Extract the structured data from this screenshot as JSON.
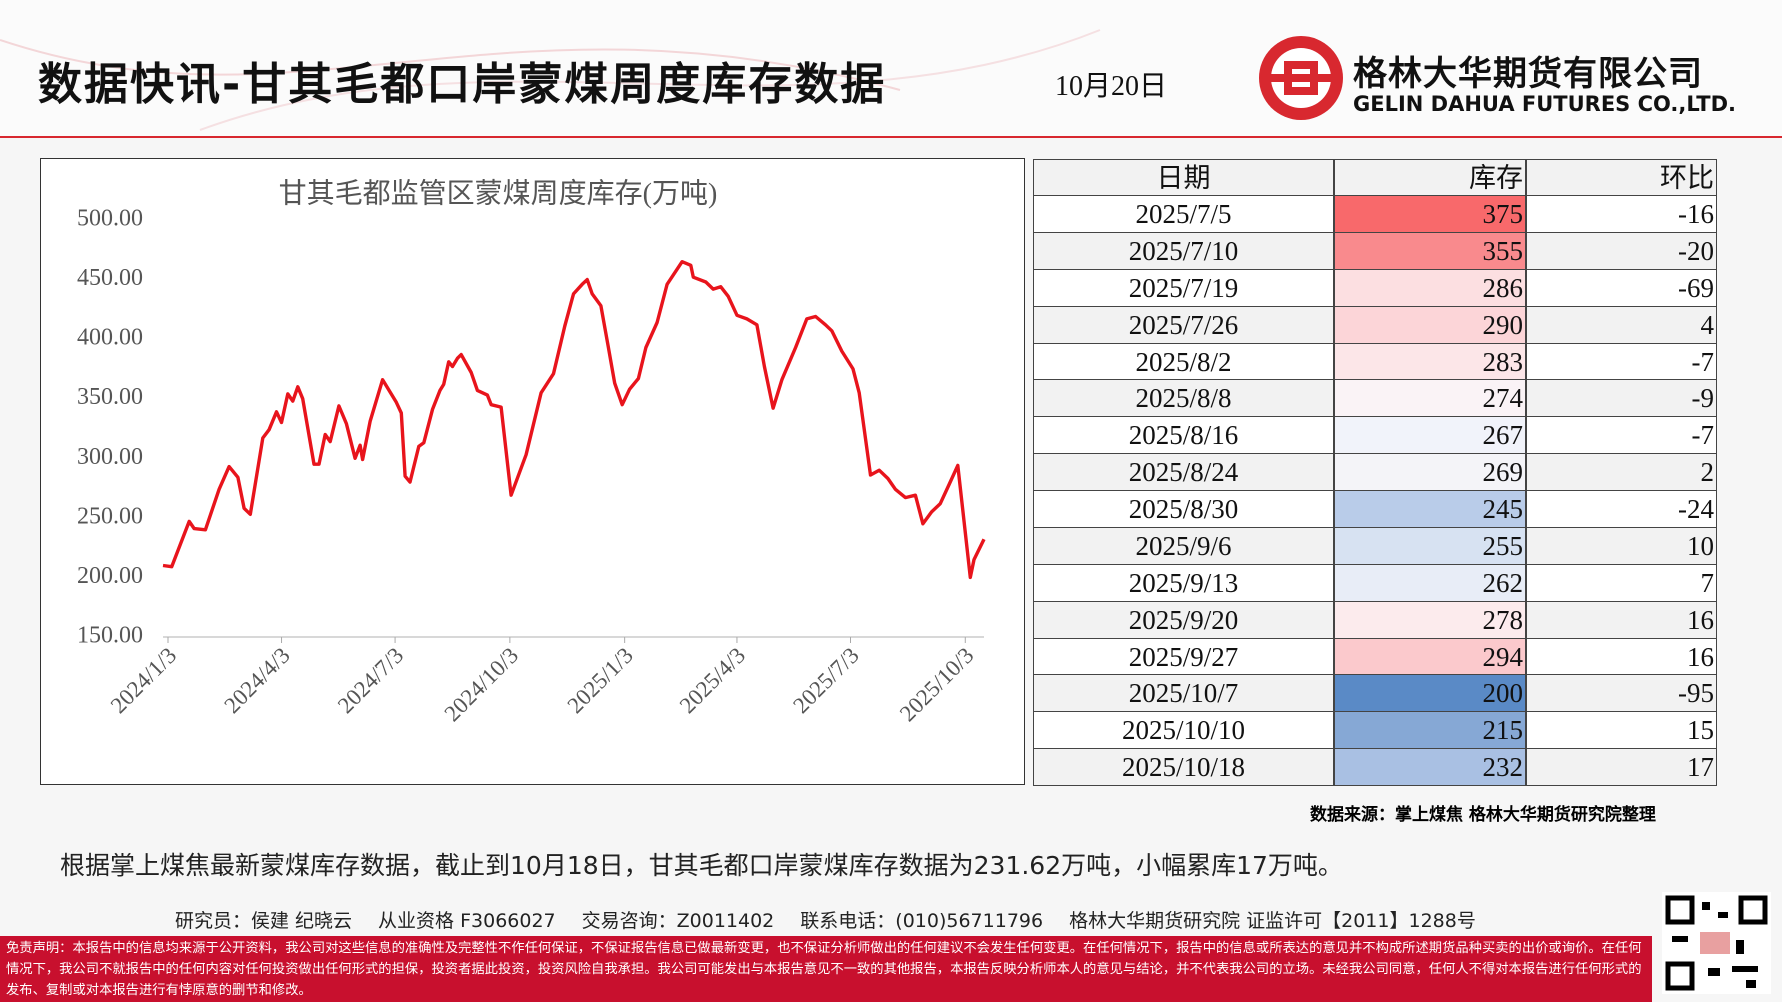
{
  "header": {
    "title": "数据快讯-甘其毛都口岸蒙煤周度库存数据",
    "date": "10月20日",
    "company_cn": "格林大华期货有限公司",
    "company_en": "GELIN DAHUA FUTURES CO.,LTD."
  },
  "chart_data": {
    "type": "line",
    "title": "甘其毛都监管区蒙煤周度库存(万吨)",
    "color": "#e8141c",
    "x": [
      "2023/12/30",
      "2024/1/6",
      "2024/1/20",
      "2024/1/24",
      "2024/2/2",
      "2024/2/13",
      "2024/2/21",
      "2024/2/28",
      "2024/3/4",
      "2024/3/9",
      "2024/3/19",
      "2024/3/24",
      "2024/3/30",
      "2024/4/3",
      "2024/4/8",
      "2024/4/12",
      "2024/4/16",
      "2024/4/20",
      "2024/4/29",
      "2024/5/3",
      "2024/5/8",
      "2024/5/12",
      "2024/5/19",
      "2024/5/25",
      "2024/6/1",
      "2024/6/5",
      "2024/6/7",
      "2024/6/13",
      "2024/6/23",
      "2024/7/4",
      "2024/7/8",
      "2024/7/11",
      "2024/7/15",
      "2024/7/22",
      "2024/7/26",
      "2024/8/2",
      "2024/8/8",
      "2024/8/11",
      "2024/8/15",
      "2024/8/18",
      "2024/8/22",
      "2024/8/25",
      "2024/9/2",
      "2024/9/7",
      "2024/9/15",
      "2024/9/18",
      "2024/9/26",
      "2024/10/4",
      "2024/10/16",
      "2024/10/28",
      "2024/11/7",
      "2024/11/16",
      "2024/11/23",
      "2024/11/30",
      "2024/12/4",
      "2024/12/8",
      "2024/12/15",
      "2024/12/21",
      "2024/12/26",
      "2025/1/1",
      "2025/1/7",
      "2025/1/14",
      "2025/1/20",
      "2025/1/29",
      "2025/2/6",
      "2025/2/18",
      "2025/2/25",
      "2025/2/27",
      "2025/3/9",
      "2025/3/15",
      "2025/3/21",
      "2025/3/27",
      "2025/4/3",
      "2025/4/11",
      "2025/4/19",
      "2025/4/25",
      "2025/5/2",
      "2025/5/9",
      "2025/5/20",
      "2025/5/29",
      "2025/6/5",
      "2025/6/13",
      "2025/6/18",
      "2025/6/26",
      "2025/7/5",
      "2025/7/10",
      "2025/7/19",
      "2025/7/26",
      "2025/8/2",
      "2025/8/8",
      "2025/8/16",
      "2025/8/24",
      "2025/8/30",
      "2025/9/6",
      "2025/9/13",
      "2025/9/20",
      "2025/9/27",
      "2025/10/7",
      "2025/10/10",
      "2025/10/18"
    ],
    "values": [
      210,
      209,
      247,
      241,
      240,
      274,
      293,
      284,
      258,
      253,
      317,
      324,
      339,
      330,
      354,
      348,
      360,
      350,
      295,
      295,
      320,
      314,
      344,
      329,
      300,
      311,
      299,
      331,
      366,
      347,
      338,
      285,
      280,
      310,
      313,
      341,
      357,
      362,
      381,
      377,
      384,
      387,
      372,
      357,
      353,
      345,
      343,
      269,
      303,
      355,
      371,
      411,
      438,
      446,
      450,
      438,
      428,
      393,
      363,
      345,
      358,
      367,
      393,
      414,
      446,
      465,
      462,
      452,
      448,
      442,
      444,
      436,
      420,
      417,
      412,
      377,
      342,
      366,
      393,
      417,
      419,
      412,
      407,
      390,
      375,
      355,
      286,
      290,
      283,
      274,
      267,
      269,
      245,
      255,
      262,
      278,
      294,
      200,
      215,
      232
    ],
    "xlim": [
      "2023/12/30",
      "2025/10/18"
    ],
    "xticks": [
      "2024/1/3",
      "2024/4/3",
      "2024/7/3",
      "2024/10/3",
      "2025/1/3",
      "2025/4/3",
      "2025/7/3",
      "2025/10/3"
    ],
    "ylim": [
      150,
      500
    ],
    "yticks": [
      {
        "value": 150,
        "label": "150.00"
      },
      {
        "value": 200,
        "label": "200.00"
      },
      {
        "value": 250,
        "label": "250.00"
      },
      {
        "value": 300,
        "label": "300.00"
      },
      {
        "value": 350,
        "label": "350.00"
      },
      {
        "value": 400,
        "label": "400.00"
      },
      {
        "value": 450,
        "label": "450.00"
      },
      {
        "value": 500,
        "label": "500.00"
      }
    ]
  },
  "table": {
    "columns": [
      "日期",
      "库存",
      "环比"
    ],
    "rows": [
      [
        "2025/7/5",
        375,
        -16
      ],
      [
        "2025/7/10",
        355,
        -20
      ],
      [
        "2025/7/19",
        286,
        -69
      ],
      [
        "2025/7/26",
        290,
        4
      ],
      [
        "2025/8/2",
        283,
        -7
      ],
      [
        "2025/8/8",
        274,
        -9
      ],
      [
        "2025/8/16",
        267,
        -7
      ],
      [
        "2025/8/24",
        269,
        2
      ],
      [
        "2025/8/30",
        245,
        -24
      ],
      [
        "2025/9/6",
        255,
        10
      ],
      [
        "2025/9/13",
        262,
        7
      ],
      [
        "2025/9/20",
        278,
        16
      ],
      [
        "2025/9/27",
        294,
        16
      ],
      [
        "2025/10/7",
        200,
        -95
      ],
      [
        "2025/10/10",
        215,
        15
      ],
      [
        "2025/10/18",
        232,
        17
      ]
    ],
    "stock_colors": [
      "#f8696b",
      "#f98a8d",
      "#fcdfe1",
      "#fcd5d8",
      "#fce6e8",
      "#faf3f6",
      "#f1f3fa",
      "#f4f4f8",
      "#b9cce9",
      "#d7e2f2",
      "#e8edf7",
      "#fcebed",
      "#fbc9cc",
      "#5a8ac6",
      "#86a8d5",
      "#a9c0e3"
    ]
  },
  "source": "数据来源：掌上煤焦 格林大华期货研究院整理",
  "summary": "根据掌上煤焦最新蒙煤库存数据，截止到10月18日，甘其毛都口岸蒙煤库存数据为231.62万吨，小幅累库17万吨。",
  "staff": [
    "研究员：侯建 纪晓云",
    "从业资格 F3066027",
    "交易咨询：Z0011402",
    "联系电话：(010)56711796",
    "格林大华期货研究院 证监许可【2011】1288号"
  ],
  "disclaimer": "免责声明：本报告中的信息均来源于公开资料，我公司对这些信息的准确性及完整性不作任何保证，不保证报告信息已做最新变更，也不保证分析师做出的任何建议不会发生任何变更。在任何情况下，报告中的信息或所表达的意见并不构成所述期货品种买卖的出价或询价。在任何情况下，我公司不就报告中的任何内容对任何投资做出任何形式的担保，投资者据此投资，投资风险自我承担。我公司可能发出与本报告意见不一致的其他报告，本报告反映分析师本人的意见与结论，并不代表我公司的立场。未经我公司同意，任何人不得对本报告进行任何形式的发布、复制或对本报告进行有悖原意的删节和修改。"
}
